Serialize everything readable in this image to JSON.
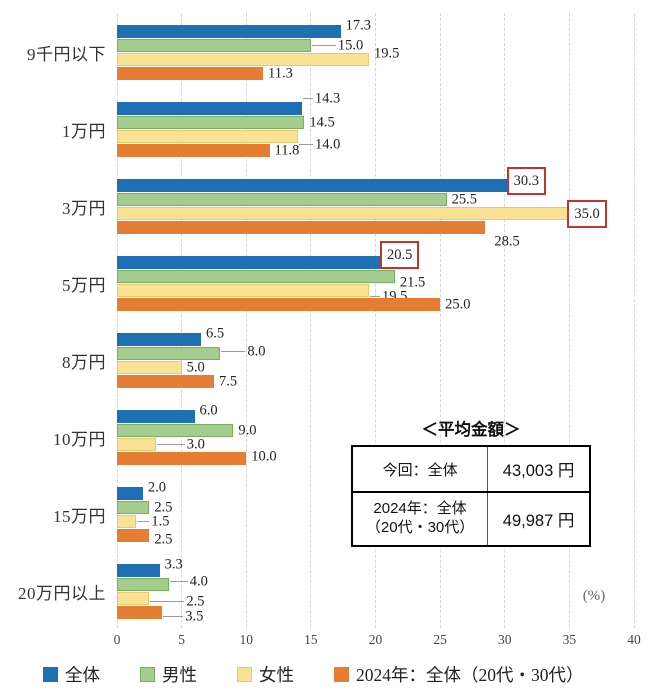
{
  "chart_data": {
    "type": "bar",
    "orientation": "horizontal",
    "title": "",
    "xlabel": "(%)",
    "ylabel": "",
    "xlim": [
      0,
      40
    ],
    "xticks": [
      0,
      5,
      10,
      15,
      20,
      25,
      30,
      35,
      40
    ],
    "grid": "vertical-dashed",
    "legend_position": "bottom",
    "decimals": 1,
    "categories": [
      "9千円以下",
      "1万円",
      "3万円",
      "5万円",
      "8万円",
      "10万円",
      "15万円",
      "20万円以上"
    ],
    "series": [
      {
        "name": "全体",
        "color": "#1E6FB3",
        "values": [
          17.3,
          14.3,
          30.3,
          20.5,
          6.5,
          6.0,
          2.0,
          3.3
        ]
      },
      {
        "name": "男性",
        "color": "#A3CC8E",
        "border_color": "#74B161",
        "values": [
          15.0,
          14.5,
          25.5,
          21.5,
          8.0,
          9.0,
          2.5,
          4.0
        ]
      },
      {
        "name": "女性",
        "color": "#FAE294",
        "border_color": "#E5C96A",
        "values": [
          19.5,
          14.0,
          35.0,
          19.5,
          5.0,
          3.0,
          1.5,
          2.5
        ]
      },
      {
        "name": "2024年：全体（20代・30代）",
        "color": "#E57E33",
        "values": [
          11.3,
          11.8,
          28.5,
          25.0,
          7.5,
          10.0,
          2.5,
          3.5
        ]
      }
    ],
    "highlight_boxes": [
      {
        "series": 0,
        "category": 2,
        "value": 30.3,
        "dy": -5
      },
      {
        "series": 2,
        "category": 2,
        "value": 35.0,
        "dy": 0
      },
      {
        "series": 0,
        "category": 3,
        "value": 20.5,
        "dy": -8
      }
    ],
    "highlight_color": "#C2342D",
    "label_offsets": {
      "0-0": {
        "dy": -6
      },
      "1-0": {
        "dx": 22,
        "leader": true
      },
      "2-0": {
        "dy": -6
      },
      "0-1": {
        "dx": 8,
        "dy": -10,
        "leader": true
      },
      "2-1": {
        "dx": 12,
        "dy": 8,
        "leader": true
      },
      "3-2": {
        "dx": 4,
        "dy": 14
      },
      "1-3": {
        "dy": 6
      },
      "2-3": {
        "dx": 8,
        "dy": 6,
        "leader": true
      },
      "0-4": {
        "dy": -6
      },
      "1-4": {
        "dx": 22,
        "dy": -2,
        "leader": true
      },
      "0-5": {
        "dy": -6
      },
      "2-5": {
        "dx": 26,
        "leader": true
      },
      "3-5": {
        "dy": -2
      },
      "0-6": {
        "dy": -6
      },
      "2-6": {
        "dx": 10,
        "leader": true
      },
      "3-6": {
        "dy": 4
      },
      "0-7": {
        "dy": -6
      },
      "1-7": {
        "dx": 16,
        "dy": -3,
        "leader": true
      },
      "2-7": {
        "dx": 32,
        "dy": 3,
        "leader": true
      },
      "3-7": {
        "dx": 18,
        "dy": 4,
        "leader": true
      }
    }
  },
  "summary_table": {
    "title": "＜平均金額＞",
    "rows": [
      {
        "label": "今回：全体",
        "sublabel": "",
        "value": "43,003 円"
      },
      {
        "label": "2024年：全体",
        "sublabel": "（20代・30代）",
        "value": "49,987 円"
      }
    ]
  }
}
